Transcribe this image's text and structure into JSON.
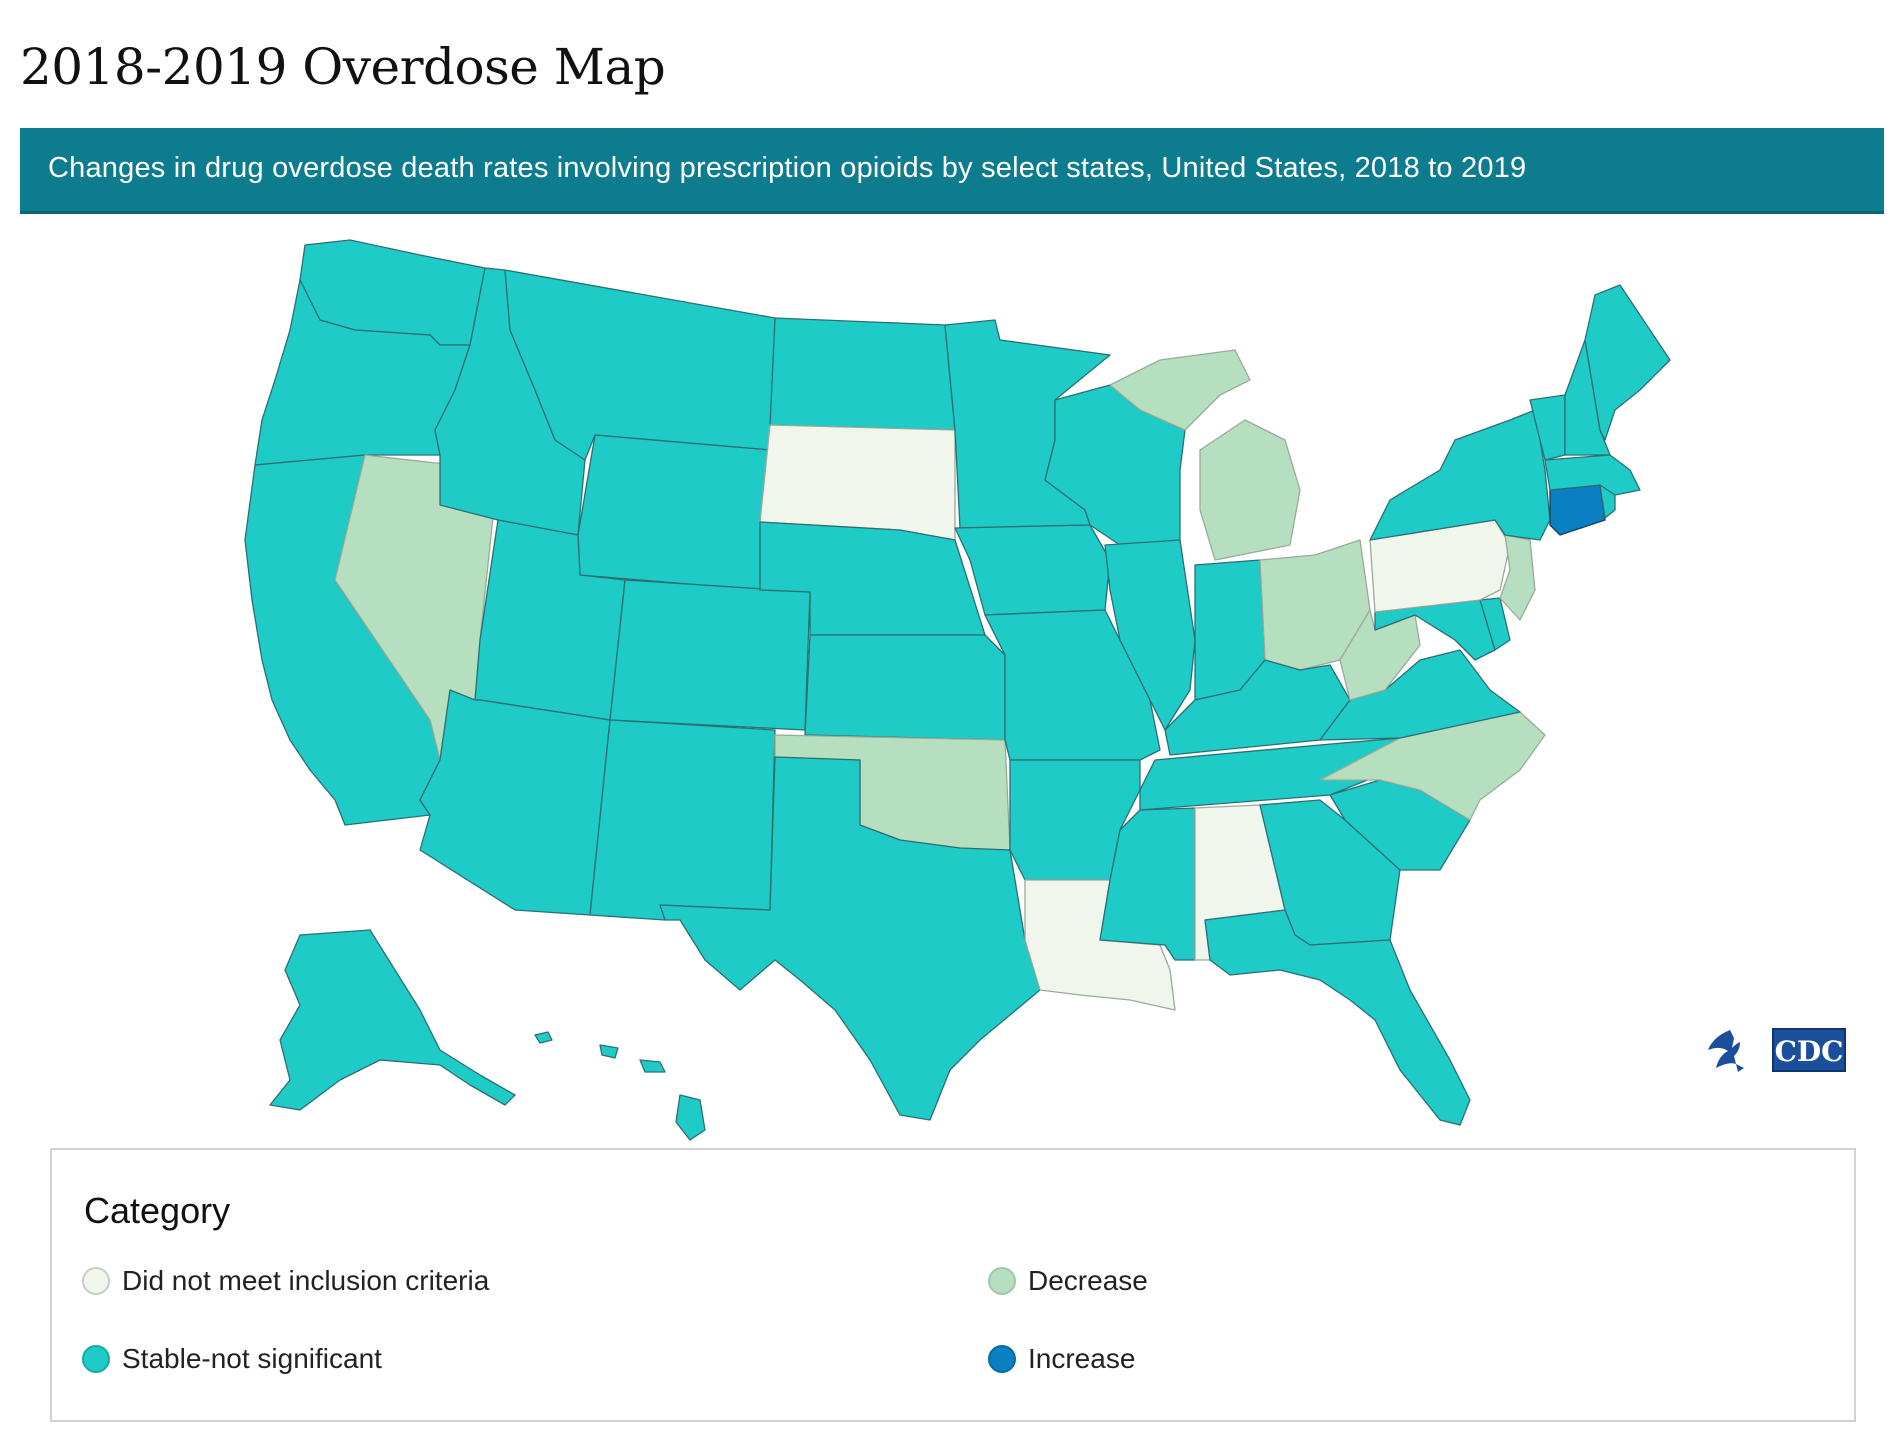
{
  "header": {
    "title": "2018-2019 Overdose Map",
    "subtitle": "Changes in drug overdose death rates involving prescription opioids by select states, United States, 2018 to 2019"
  },
  "legend": {
    "title": "Category",
    "items": [
      {
        "label": "Did not meet inclusion criteria",
        "color": "#f1f6ec"
      },
      {
        "label": "Decrease",
        "color": "#b6dfbf"
      },
      {
        "label": "Stable-not significant",
        "color": "#1ecbc6"
      },
      {
        "label": "Increase",
        "color": "#0a7fc1"
      }
    ]
  },
  "map": {
    "states": [
      {
        "name": "Washington",
        "category": "Stable-not significant"
      },
      {
        "name": "Oregon",
        "category": "Stable-not significant"
      },
      {
        "name": "California",
        "category": "Stable-not significant"
      },
      {
        "name": "Nevada",
        "category": "Decrease"
      },
      {
        "name": "Idaho",
        "category": "Stable-not significant"
      },
      {
        "name": "Montana",
        "category": "Stable-not significant"
      },
      {
        "name": "Wyoming",
        "category": "Stable-not significant"
      },
      {
        "name": "Utah",
        "category": "Stable-not significant"
      },
      {
        "name": "Arizona",
        "category": "Stable-not significant"
      },
      {
        "name": "Colorado",
        "category": "Stable-not significant"
      },
      {
        "name": "New Mexico",
        "category": "Stable-not significant"
      },
      {
        "name": "North Dakota",
        "category": "Stable-not significant"
      },
      {
        "name": "South Dakota",
        "category": "Did not meet inclusion criteria"
      },
      {
        "name": "Nebraska",
        "category": "Stable-not significant"
      },
      {
        "name": "Kansas",
        "category": "Stable-not significant"
      },
      {
        "name": "Oklahoma",
        "category": "Decrease"
      },
      {
        "name": "Texas",
        "category": "Stable-not significant"
      },
      {
        "name": "Minnesota",
        "category": "Stable-not significant"
      },
      {
        "name": "Iowa",
        "category": "Stable-not significant"
      },
      {
        "name": "Missouri",
        "category": "Stable-not significant"
      },
      {
        "name": "Arkansas",
        "category": "Stable-not significant"
      },
      {
        "name": "Louisiana",
        "category": "Did not meet inclusion criteria"
      },
      {
        "name": "Wisconsin",
        "category": "Stable-not significant"
      },
      {
        "name": "Illinois",
        "category": "Stable-not significant"
      },
      {
        "name": "Michigan",
        "category": "Decrease"
      },
      {
        "name": "Indiana",
        "category": "Stable-not significant"
      },
      {
        "name": "Ohio",
        "category": "Decrease"
      },
      {
        "name": "Kentucky",
        "category": "Stable-not significant"
      },
      {
        "name": "Tennessee",
        "category": "Stable-not significant"
      },
      {
        "name": "Mississippi",
        "category": "Stable-not significant"
      },
      {
        "name": "Alabama",
        "category": "Did not meet inclusion criteria"
      },
      {
        "name": "Georgia",
        "category": "Stable-not significant"
      },
      {
        "name": "Florida",
        "category": "Stable-not significant"
      },
      {
        "name": "South Carolina",
        "category": "Stable-not significant"
      },
      {
        "name": "North Carolina",
        "category": "Decrease"
      },
      {
        "name": "Virginia",
        "category": "Stable-not significant"
      },
      {
        "name": "West Virginia",
        "category": "Decrease"
      },
      {
        "name": "Maryland",
        "category": "Stable-not significant"
      },
      {
        "name": "Delaware",
        "category": "Stable-not significant"
      },
      {
        "name": "Pennsylvania",
        "category": "Did not meet inclusion criteria"
      },
      {
        "name": "New Jersey",
        "category": "Decrease"
      },
      {
        "name": "New York",
        "category": "Stable-not significant"
      },
      {
        "name": "Connecticut",
        "category": "Increase"
      },
      {
        "name": "Rhode Island",
        "category": "Stable-not significant"
      },
      {
        "name": "Massachusetts",
        "category": "Stable-not significant"
      },
      {
        "name": "Vermont",
        "category": "Stable-not significant"
      },
      {
        "name": "New Hampshire",
        "category": "Stable-not significant"
      },
      {
        "name": "Maine",
        "category": "Stable-not significant"
      },
      {
        "name": "Alaska",
        "category": "Stable-not significant"
      },
      {
        "name": "Hawaii",
        "category": "Stable-not significant"
      }
    ]
  },
  "logo": {
    "text": "CDC",
    "icon": "hhs-eagle-icon"
  }
}
